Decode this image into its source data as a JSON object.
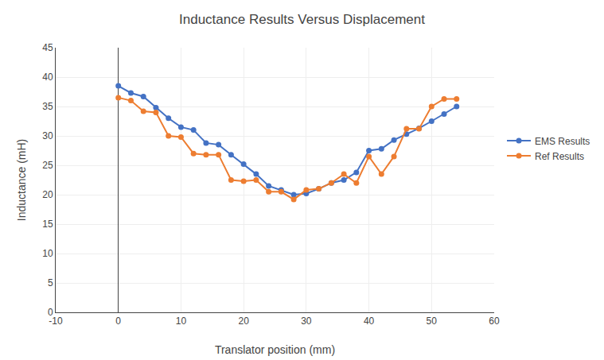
{
  "chart_data": {
    "type": "line",
    "title": "Inductance Results Versus Displacement",
    "xlabel": "Translator position (mm)",
    "ylabel": "Inductance (mH)",
    "x": [
      0,
      2,
      4,
      6,
      8,
      10,
      12,
      14,
      16,
      18,
      20,
      22,
      24,
      26,
      28,
      30,
      32,
      34,
      36,
      38,
      40,
      42,
      44,
      46,
      48,
      50,
      52,
      54
    ],
    "series": [
      {
        "name": "EMS Results",
        "color": "#4472C4",
        "values": [
          38.5,
          37.3,
          36.7,
          34.8,
          33.0,
          31.5,
          31.0,
          28.8,
          28.5,
          26.8,
          25.2,
          23.5,
          21.5,
          20.8,
          20.0,
          20.2,
          21.0,
          22.0,
          22.5,
          23.8,
          27.5,
          27.8,
          29.3,
          30.3,
          31.3,
          32.5,
          33.7,
          35.0
        ]
      },
      {
        "name": "Ref Results",
        "color": "#ED7D31",
        "values": [
          36.5,
          36.0,
          34.2,
          34.0,
          30.0,
          29.8,
          27.0,
          26.8,
          26.8,
          22.5,
          22.3,
          22.5,
          20.5,
          20.5,
          19.2,
          20.8,
          21.0,
          22.0,
          23.5,
          22.0,
          26.5,
          23.5,
          26.5,
          31.2,
          31.2,
          35.0,
          36.3,
          36.3
        ]
      }
    ],
    "xlim": [
      -10,
      60
    ],
    "ylim": [
      0,
      45
    ],
    "xticks": [
      -10,
      0,
      10,
      20,
      30,
      40,
      50,
      60
    ],
    "yticks": [
      0,
      5,
      10,
      15,
      20,
      25,
      30,
      35,
      40,
      45
    ],
    "marker": "circle",
    "grid": true,
    "legend": "right"
  }
}
